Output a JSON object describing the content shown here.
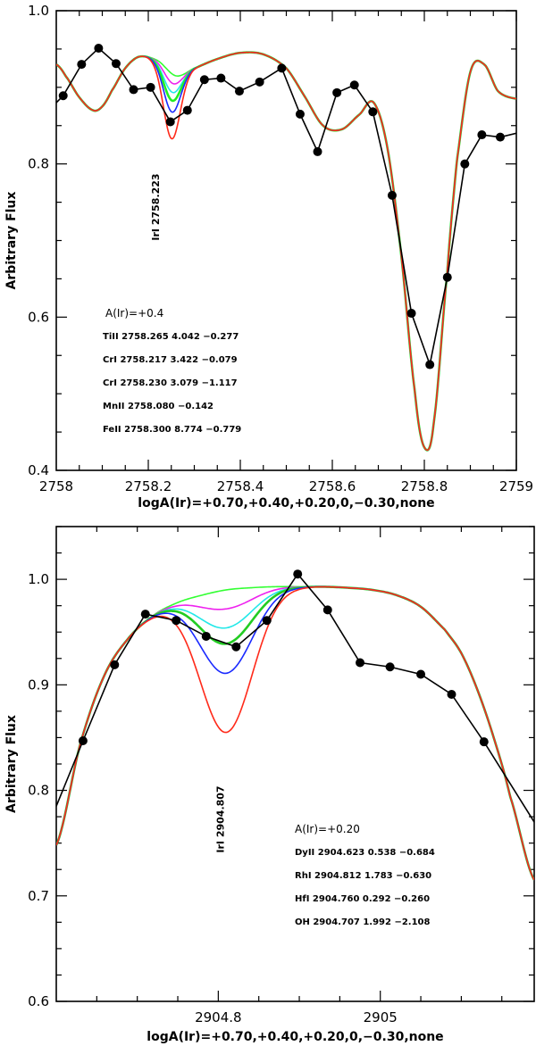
{
  "chart_data": [
    {
      "type": "line",
      "id": "top",
      "xlabel": "logA(Ir)=+0.70,+0.40,+0.20,0,−0.30,none",
      "ylabel": "Arbitrary Flux",
      "xlim": [
        2758,
        2759
      ],
      "ylim": [
        0.4,
        1.0
      ],
      "xticks": [
        2758,
        2758.2,
        2758.4,
        2758.6,
        2758.8,
        2759
      ],
      "xtick_labels": [
        "2758",
        "2758.2",
        "2758.4",
        "2758.6",
        "2758.8",
        "2759"
      ],
      "yticks": [
        0.4,
        0.6,
        0.8,
        1.0
      ],
      "ytick_labels": [
        "0.4",
        "0.6",
        "0.8",
        "1.0"
      ],
      "line_label": {
        "text": "IrI 2758.223",
        "x": 2758.223,
        "y": 0.76
      },
      "annotation_header": "A(Ir)=+0.4",
      "annotations": [
        "TiII 2758.265 4.042 −0.277",
        "CrI 2758.217 3.422 −0.079",
        "CrI 2758.230 3.079 −1.117",
        "MnII 2758.080 −0.142",
        "FeII 2758.300 8.774 −0.779"
      ],
      "observed": {
        "x": [
          2758.0,
          2758.015,
          2758.055,
          2758.092,
          2758.13,
          2758.168,
          2758.205,
          2758.248,
          2758.285,
          2758.322,
          2758.358,
          2758.398,
          2758.442,
          2758.49,
          2758.53,
          2758.568,
          2758.61,
          2758.648,
          2758.688,
          2758.73,
          2758.772,
          2758.812,
          2758.85,
          2758.888,
          2758.925,
          2758.965,
          2759.0
        ],
        "y": [
          0.88,
          0.889,
          0.93,
          0.951,
          0.931,
          0.897,
          0.9,
          0.855,
          0.87,
          0.91,
          0.912,
          0.895,
          0.907,
          0.925,
          0.865,
          0.816,
          0.893,
          0.903,
          0.868,
          0.759,
          0.605,
          0.538,
          0.652,
          0.8,
          0.838,
          0.835,
          0.84
        ]
      },
      "synthetic_base": {
        "x": [
          2758.0,
          2758.02,
          2758.05,
          2758.08,
          2758.1,
          2758.12,
          2758.15,
          2758.18,
          2758.22,
          2758.26,
          2758.3,
          2758.35,
          2758.4,
          2758.45,
          2758.5,
          2758.54,
          2758.58,
          2758.62,
          2758.66,
          2758.69,
          2758.72,
          2758.75,
          2758.78,
          2758.8,
          2758.82,
          2758.85,
          2758.87,
          2758.9,
          2758.93,
          2758.96,
          2759.0
        ],
        "y": [
          0.93,
          0.915,
          0.887,
          0.87,
          0.875,
          0.895,
          0.925,
          0.94,
          0.935,
          0.915,
          0.925,
          0.937,
          0.945,
          0.943,
          0.925,
          0.888,
          0.85,
          0.845,
          0.865,
          0.88,
          0.82,
          0.68,
          0.5,
          0.43,
          0.46,
          0.66,
          0.8,
          0.92,
          0.93,
          0.895,
          0.885
        ]
      },
      "series": [
        {
          "name": "+0.70",
          "color": "#ff2a1a",
          "depth": 0.085
        },
        {
          "name": "+0.40",
          "color": "#1a2aff",
          "depth": 0.05
        },
        {
          "name": "+0.20",
          "color": "#22ee22",
          "depth": 0.035
        },
        {
          "name": "0",
          "color": "#22e8e8",
          "depth": 0.024
        },
        {
          "name": "−0.30",
          "color": "#ee22ee",
          "depth": 0.012
        },
        {
          "name": "none",
          "color": "#33ff33",
          "depth": 0.0
        }
      ],
      "line_center": 2758.25,
      "line_width": 0.018
    },
    {
      "type": "line",
      "id": "bottom",
      "xlabel": "logA(Ir)=+0.70,+0.40,+0.20,0,−0.30,none",
      "ylabel": "Arbitrary Flux",
      "xlim": [
        2904.6,
        2905.19
      ],
      "ylim": [
        0.6,
        1.05
      ],
      "xticks": [
        2904.8,
        2905.0
      ],
      "xtick_labels": [
        "2904.8",
        "2905"
      ],
      "yticks": [
        0.6,
        0.7,
        0.8,
        0.9,
        1.0
      ],
      "ytick_labels": [
        "0.6",
        "0.7",
        "0.8",
        "0.9",
        "1.0"
      ],
      "line_label": {
        "text": "IrI 2904.807",
        "x": 2904.807,
        "y": 0.76
      },
      "annotation_header": "A(Ir)=+0.20",
      "annotations": [
        "DyII 2904.623 0.538 −0.684",
        "RhI 2904.812 1.783 −0.630",
        "HfI 2904.760 0.292 −0.260",
        "OH 2904.707 1.992 −2.108"
      ],
      "observed": {
        "x": [
          2904.6,
          2904.633,
          2904.672,
          2904.71,
          2904.748,
          2904.785,
          2904.822,
          2904.86,
          2904.898,
          2904.935,
          2904.975,
          2905.012,
          2905.05,
          2905.088,
          2905.128,
          2905.19
        ],
        "y": [
          0.785,
          0.847,
          0.919,
          0.967,
          0.961,
          0.946,
          0.936,
          0.961,
          1.005,
          0.971,
          0.921,
          0.917,
          0.91,
          0.891,
          0.846,
          0.77
        ]
      },
      "synthetic_base": {
        "x": [
          2904.6,
          2904.63,
          2904.66,
          2904.69,
          2904.72,
          2904.75,
          2904.78,
          2904.81,
          2904.84,
          2904.87,
          2904.9,
          2904.93,
          2904.96,
          2904.99,
          2905.02,
          2905.05,
          2905.08,
          2905.1,
          2905.12,
          2905.14,
          2905.16,
          2905.19
        ],
        "y": [
          0.748,
          0.845,
          0.91,
          0.945,
          0.966,
          0.978,
          0.985,
          0.99,
          0.992,
          0.993,
          0.993,
          0.993,
          0.992,
          0.99,
          0.985,
          0.974,
          0.952,
          0.93,
          0.895,
          0.85,
          0.795,
          0.715
        ]
      },
      "series": [
        {
          "name": "+0.70",
          "color": "#ff2a1a",
          "depth": 0.135
        },
        {
          "name": "+0.40",
          "color": "#1a2aff",
          "depth": 0.079
        },
        {
          "name": "+0.20",
          "color": "#22cc22",
          "depth": 0.051
        },
        {
          "name": "0",
          "color": "#22e8e8",
          "depth": 0.036
        },
        {
          "name": "−0.30",
          "color": "#ee22ee",
          "depth": 0.018
        },
        {
          "name": "none",
          "color": "#33ff33",
          "depth": 0.0
        }
      ],
      "line_center": 2904.81,
      "line_width": 0.032
    }
  ]
}
